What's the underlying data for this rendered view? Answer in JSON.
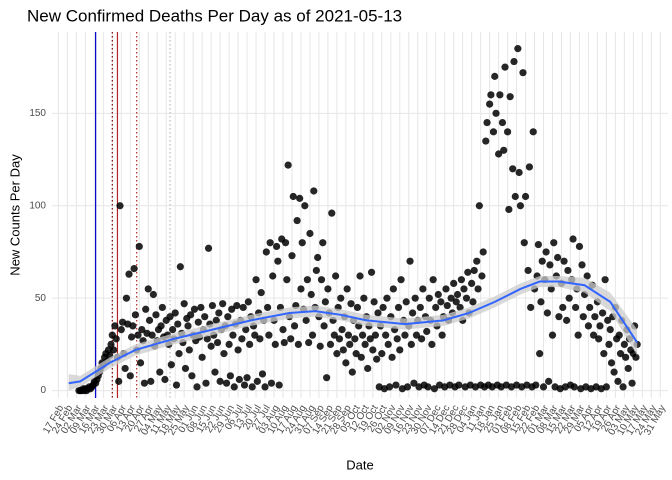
{
  "chart_data": {
    "type": "scatter",
    "title": "New Confirmed Deaths Per Day as of 2021-05-13",
    "xlabel": "Date",
    "ylabel": "New Counts Per Day",
    "xlim": [
      -5,
      475
    ],
    "ylim": [
      -4,
      194
    ],
    "yticks": [
      0,
      50,
      100,
      150
    ],
    "xticks": [
      {
        "value": 0,
        "label": "17 Feb"
      },
      {
        "value": 7,
        "label": "24 Feb"
      },
      {
        "value": 14,
        "label": "02 Mar"
      },
      {
        "value": 21,
        "label": "09 Mar"
      },
      {
        "value": 28,
        "label": "16 Mar"
      },
      {
        "value": 35,
        "label": "23 Mar"
      },
      {
        "value": 42,
        "label": "30 Mar"
      },
      {
        "value": 49,
        "label": "06 Apr"
      },
      {
        "value": 56,
        "label": "13 Apr"
      },
      {
        "value": 63,
        "label": "20 Apr"
      },
      {
        "value": 70,
        "label": "27 Apr"
      },
      {
        "value": 77,
        "label": "04 May"
      },
      {
        "value": 84,
        "label": "11 May"
      },
      {
        "value": 91,
        "label": "18 May"
      },
      {
        "value": 98,
        "label": "25 May"
      },
      {
        "value": 105,
        "label": "01 Jun"
      },
      {
        "value": 112,
        "label": "08 Jun"
      },
      {
        "value": 119,
        "label": "15 Jun"
      },
      {
        "value": 126,
        "label": "22 Jun"
      },
      {
        "value": 133,
        "label": "29 Jun"
      },
      {
        "value": 140,
        "label": "06 Jul"
      },
      {
        "value": 147,
        "label": "13 Jul"
      },
      {
        "value": 154,
        "label": "20 Jul"
      },
      {
        "value": 161,
        "label": "27 Jul"
      },
      {
        "value": 168,
        "label": "03 Aug"
      },
      {
        "value": 175,
        "label": "10 Aug"
      },
      {
        "value": 182,
        "label": "17 Aug"
      },
      {
        "value": 189,
        "label": "24 Aug"
      },
      {
        "value": 196,
        "label": "31 Aug"
      },
      {
        "value": 203,
        "label": "07 Sep"
      },
      {
        "value": 210,
        "label": "14 Sep"
      },
      {
        "value": 217,
        "label": "21 Sep"
      },
      {
        "value": 224,
        "label": "28 Sep"
      },
      {
        "value": 231,
        "label": "05 Oct"
      },
      {
        "value": 238,
        "label": "12 Oct"
      },
      {
        "value": 245,
        "label": "19 Oct"
      },
      {
        "value": 252,
        "label": "26 Oct"
      },
      {
        "value": 259,
        "label": "02 Nov"
      },
      {
        "value": 266,
        "label": "09 Nov"
      },
      {
        "value": 273,
        "label": "16 Nov"
      },
      {
        "value": 280,
        "label": "23 Nov"
      },
      {
        "value": 287,
        "label": "30 Nov"
      },
      {
        "value": 294,
        "label": "07 Dec"
      },
      {
        "value": 301,
        "label": "14 Dec"
      },
      {
        "value": 308,
        "label": "21 Dec"
      },
      {
        "value": 315,
        "label": "28 Dec"
      },
      {
        "value": 322,
        "label": "04 Jan"
      },
      {
        "value": 329,
        "label": "11 Jan"
      },
      {
        "value": 336,
        "label": "18 Jan"
      },
      {
        "value": 343,
        "label": "25 Jan"
      },
      {
        "value": 350,
        "label": "01 Feb"
      },
      {
        "value": 357,
        "label": "08 Feb"
      },
      {
        "value": 364,
        "label": "15 Feb"
      },
      {
        "value": 371,
        "label": "22 Feb"
      },
      {
        "value": 378,
        "label": "01 Mar"
      },
      {
        "value": 385,
        "label": "08 Mar"
      },
      {
        "value": 392,
        "label": "15 Mar"
      },
      {
        "value": 399,
        "label": "22 Mar"
      },
      {
        "value": 406,
        "label": "29 Mar"
      },
      {
        "value": 413,
        "label": "05 Apr"
      },
      {
        "value": 420,
        "label": "12 Apr"
      },
      {
        "value": 427,
        "label": "19 Apr"
      },
      {
        "value": 434,
        "label": "26 Apr"
      },
      {
        "value": 441,
        "label": "03 May"
      },
      {
        "value": 448,
        "label": "10 May"
      },
      {
        "value": 455,
        "label": "17 May"
      },
      {
        "value": 462,
        "label": "24 May"
      },
      {
        "value": 469,
        "label": "31 May"
      }
    ],
    "grid": true,
    "vlines": [
      {
        "x": 29,
        "color": "#0000cd",
        "style": "solid"
      },
      {
        "x": 42,
        "color": "#8b0000",
        "style": "dotted"
      },
      {
        "x": 46,
        "color": "#b22222",
        "style": "solid"
      },
      {
        "x": 61,
        "color": "#b22222",
        "style": "dotted"
      },
      {
        "x": 87,
        "color": "#bbbbbb",
        "style": "dotted"
      }
    ],
    "points": {
      "color": "#000000",
      "x": [
        16,
        17,
        18,
        19,
        20,
        21,
        22,
        23,
        24,
        25,
        26,
        27,
        28,
        29,
        30,
        31,
        32,
        33,
        34,
        35,
        36,
        37,
        38,
        39,
        40,
        41,
        42,
        43,
        44,
        45,
        46,
        47,
        48,
        49,
        50,
        51,
        52,
        53,
        54,
        55,
        56,
        57,
        58,
        59,
        60,
        61,
        62,
        63,
        64,
        65,
        66,
        67,
        68,
        69,
        70,
        71,
        72,
        73,
        74,
        75,
        76,
        77,
        78,
        79,
        80,
        81,
        82,
        83,
        84,
        85,
        86,
        87,
        88,
        89,
        90,
        91,
        92,
        93,
        94,
        95,
        96,
        97,
        98,
        99,
        100,
        101,
        102,
        103,
        104,
        105,
        106,
        107,
        108,
        109,
        110,
        111,
        112,
        113,
        114,
        115,
        116,
        117,
        118,
        119,
        120,
        121,
        122,
        123,
        124,
        125,
        126,
        127,
        128,
        129,
        130,
        131,
        132,
        133,
        134,
        135,
        136,
        137,
        138,
        139,
        140,
        141,
        142,
        143,
        144,
        145,
        146,
        147,
        148,
        149,
        150,
        151,
        152,
        153,
        154,
        155,
        156,
        157,
        158,
        159,
        160,
        161,
        162,
        163,
        164,
        165,
        166,
        167,
        168,
        169,
        170,
        171,
        172,
        173,
        174,
        175,
        176,
        177,
        178,
        179,
        180,
        181,
        182,
        183,
        184,
        185,
        186,
        187,
        188,
        189,
        190,
        191,
        192,
        193,
        194,
        195,
        196,
        197,
        198,
        199,
        200,
        201,
        202,
        203,
        204,
        205,
        206,
        207,
        208,
        209,
        210,
        211,
        212,
        213,
        214,
        215,
        216,
        217,
        218,
        219,
        220,
        221,
        222,
        223,
        224,
        225,
        226,
        227,
        228,
        229,
        230,
        231,
        232,
        233,
        234,
        235,
        236,
        237,
        238,
        239,
        240,
        241,
        242,
        243,
        244,
        245,
        246,
        247,
        248,
        249,
        250,
        251,
        252,
        253,
        254,
        255,
        256,
        257,
        258,
        259,
        260,
        261,
        262,
        263,
        264,
        265,
        266,
        267,
        268,
        269,
        270,
        271,
        272,
        273,
        274,
        275,
        276,
        277,
        278,
        279,
        280,
        281,
        282,
        283,
        284,
        285,
        286,
        287,
        288,
        289,
        290,
        291,
        292,
        293,
        294,
        295,
        296,
        297,
        298,
        299,
        300,
        301,
        302,
        303,
        304,
        305,
        306,
        307,
        308,
        309,
        310,
        311,
        312,
        313,
        314,
        315,
        316,
        317,
        318,
        319,
        320,
        321,
        322,
        323,
        324,
        325,
        326,
        327,
        328,
        329,
        330,
        331,
        332,
        333,
        334,
        335,
        336,
        337,
        338,
        339,
        340,
        341,
        342,
        343,
        344,
        345,
        346,
        347,
        348,
        349,
        350,
        351,
        352,
        353,
        354,
        355,
        356,
        357,
        358,
        359,
        360,
        361,
        362,
        363,
        364,
        365,
        366,
        367,
        368,
        369,
        370,
        371,
        372,
        373,
        374,
        375,
        376,
        377,
        378,
        379,
        380,
        381,
        382,
        383,
        384,
        385,
        386,
        387,
        388,
        389,
        390,
        391,
        392,
        393,
        394,
        395,
        396,
        397,
        398,
        399,
        400,
        401,
        402,
        403,
        404,
        405,
        406,
        407,
        408,
        409,
        410,
        411,
        412,
        413,
        414,
        415,
        416,
        417,
        418,
        419,
        420,
        421,
        422,
        423,
        424,
        425,
        426,
        427,
        428,
        429,
        430,
        431,
        432,
        433,
        434,
        435,
        436,
        437,
        438,
        439,
        440,
        441,
        442,
        443,
        444,
        445,
        446,
        447,
        448,
        449,
        450,
        451
      ],
      "values": [
        0,
        0,
        0,
        1,
        0,
        1,
        0,
        1,
        2,
        1,
        2,
        3,
        5,
        4,
        6,
        8,
        10,
        12,
        15,
        14,
        18,
        20,
        16,
        22,
        19,
        25,
        30,
        22,
        35,
        28,
        18,
        5,
        100,
        33,
        37,
        20,
        12,
        50,
        36,
        63,
        8,
        29,
        35,
        66,
        41,
        22,
        30,
        78,
        15,
        33,
        27,
        4,
        44,
        31,
        55,
        38,
        5,
        30,
        52,
        24,
        41,
        27,
        33,
        10,
        35,
        45,
        29,
        6,
        38,
        30,
        25,
        40,
        14,
        33,
        28,
        42,
        3,
        36,
        20,
        67,
        31,
        26,
        47,
        12,
        39,
        35,
        22,
        41,
        8,
        30,
        44,
        27,
        2,
        37,
        29,
        45,
        18,
        33,
        40,
        4,
        28,
        77,
        36,
        24,
        46,
        30,
        10,
        38,
        26,
        42,
        5,
        33,
        47,
        20,
        35,
        4,
        40,
        25,
        8,
        44,
        30,
        2,
        36,
        46,
        22,
        6,
        38,
        28,
        45,
        3,
        33,
        7,
        48,
        25,
        40,
        2,
        35,
        30,
        60,
        5,
        42,
        28,
        53,
        9,
        38,
        2,
        75,
        45,
        30,
        80,
        4,
        62,
        38,
        25,
        78,
        70,
        3,
        45,
        82,
        33,
        26,
        80,
        60,
        122,
        40,
        28,
        73,
        105,
        35,
        46,
        92,
        25,
        104,
        55,
        80,
        44,
        100,
        38,
        60,
        26,
        85,
        52,
        30,
        108,
        45,
        65,
        72,
        40,
        24,
        60,
        80,
        35,
        48,
        7,
        55,
        42,
        25,
        96,
        38,
        30,
        62,
        20,
        45,
        28,
        50,
        33,
        22,
        40,
        15,
        55,
        30,
        25,
        47,
        10,
        38,
        28,
        20,
        45,
        35,
        62,
        18,
        30,
        50,
        25,
        40,
        12,
        35,
        28,
        64,
        22,
        48,
        30,
        17,
        42,
        2,
        35,
        20,
        45,
        1,
        30,
        50,
        25,
        2,
        40,
        18,
        55,
        33,
        3,
        28,
        45,
        22,
        60,
        1,
        38,
        30,
        48,
        2,
        35,
        70,
        25,
        42,
        4,
        50,
        30,
        38,
        2,
        45,
        28,
        55,
        3,
        40,
        32,
        2,
        50,
        38,
        25,
        60,
        1,
        45,
        35,
        52,
        3,
        48,
        30,
        40,
        2,
        55,
        46,
        38,
        3,
        50,
        42,
        58,
        2,
        48,
        52,
        3,
        45,
        60,
        38,
        55,
        2,
        50,
        64,
        42,
        3,
        58,
        48,
        65,
        2,
        70,
        55,
        100,
        3,
        62,
        75,
        2,
        135,
        145,
        3,
        155,
        160,
        2,
        140,
        170,
        150,
        3,
        128,
        160,
        2,
        145,
        130,
        175,
        3,
        140,
        98,
        159,
        2,
        120,
        178,
        105,
        3,
        185,
        118,
        100,
        2,
        172,
        80,
        105,
        3,
        65,
        121,
        45,
        2,
        140,
        55,
        3,
        62,
        79,
        20,
        48,
        70,
        2,
        60,
        75,
        42,
        5,
        68,
        55,
        30,
        80,
        2,
        62,
        72,
        40,
        1,
        58,
        45,
        70,
        2,
        38,
        65,
        50,
        3,
        60,
        82,
        2,
        45,
        55,
        30,
        78,
        1,
        68,
        40,
        52,
        2,
        62,
        35,
        45,
        1,
        57,
        30,
        40,
        2,
        48,
        28,
        35,
        1,
        42,
        20,
        60,
        2,
        38,
        25,
        33,
        15,
        40,
        10,
        45,
        28,
        5,
        30,
        20,
        38,
        2,
        25,
        18,
        33,
        12,
        28,
        22,
        4,
        20,
        35,
        18,
        25
      ]
    },
    "smooth": {
      "color": "#3366ff",
      "band_color": "#cccccc",
      "x": [
        8,
        17,
        40,
        60,
        90,
        120,
        150,
        180,
        200,
        220,
        240,
        270,
        300,
        320,
        340,
        360,
        375,
        390,
        410,
        430,
        451
      ],
      "values": [
        4,
        5,
        15,
        22,
        28,
        33,
        38,
        42,
        43,
        41,
        38,
        36,
        38,
        42,
        48,
        55,
        59,
        59,
        57,
        48,
        26
      ],
      "lower": [
        0,
        2,
        12,
        19,
        25,
        30,
        35,
        39,
        40,
        38,
        35,
        33,
        35,
        39,
        45,
        52,
        56,
        56,
        53,
        43,
        19
      ],
      "upper": [
        9,
        8,
        18,
        25,
        31,
        36,
        41,
        45,
        46,
        44,
        41,
        39,
        41,
        45,
        51,
        58,
        62,
        62,
        61,
        53,
        33
      ]
    }
  }
}
